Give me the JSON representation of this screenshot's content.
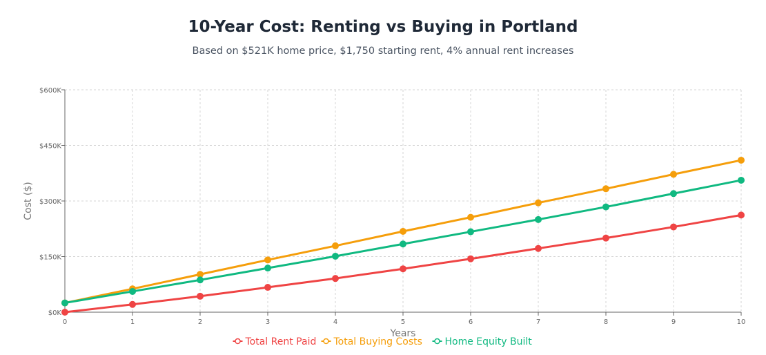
{
  "chart_data": {
    "type": "line",
    "title": "10-Year Cost: Renting vs Buying in Portland",
    "subtitle": "Based on $521K home price, $1,750 starting rent, 4% annual rent increases",
    "xlabel": "Years",
    "ylabel": "Cost ($)",
    "x": [
      0,
      1,
      2,
      3,
      4,
      5,
      6,
      7,
      8,
      9,
      10
    ],
    "xlim": [
      0,
      10
    ],
    "ylim": [
      0,
      600000
    ],
    "yticks": [
      0,
      150000,
      300000,
      450000,
      600000
    ],
    "ytick_labels": [
      "$0K",
      "$150K",
      "$300K",
      "$450K",
      "$600K"
    ],
    "grid": true,
    "legend_position": "bottom",
    "series": [
      {
        "name": "Total Rent Paid",
        "color": "#ef4444",
        "values": [
          0,
          21000,
          43000,
          67000,
          91000,
          117000,
          144000,
          172000,
          200000,
          230000,
          262000
        ]
      },
      {
        "name": "Total Buying Costs",
        "color": "#f59e0b",
        "values": [
          25000,
          63000,
          102000,
          141000,
          179000,
          218000,
          256000,
          295000,
          333000,
          372000,
          410000
        ]
      },
      {
        "name": "Home Equity Built",
        "color": "#10b981",
        "values": [
          25000,
          56000,
          87000,
          119000,
          151000,
          184000,
          217000,
          250000,
          284000,
          320000,
          356000
        ]
      }
    ]
  }
}
